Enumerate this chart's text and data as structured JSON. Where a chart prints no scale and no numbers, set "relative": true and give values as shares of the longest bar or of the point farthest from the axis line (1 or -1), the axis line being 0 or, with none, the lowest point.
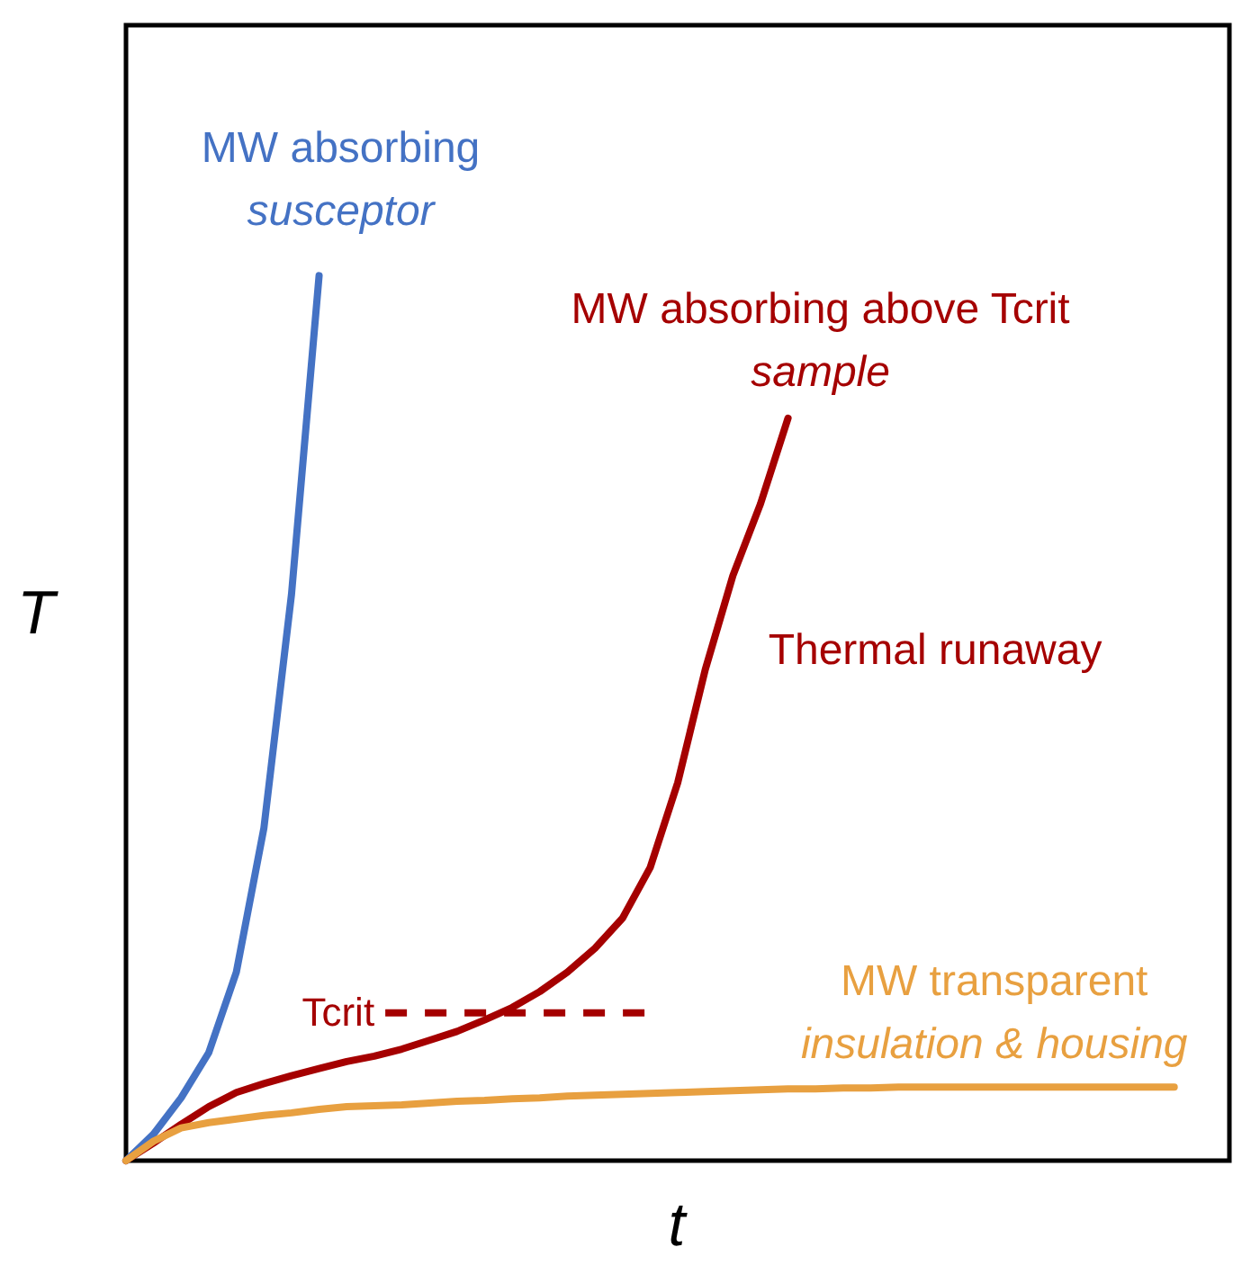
{
  "chart_data": {
    "type": "line",
    "relative": true,
    "xlabel": "t",
    "ylabel": "T",
    "categories": [
      null,
      null,
      null,
      null,
      null,
      null,
      null,
      null,
      null,
      null,
      null,
      null,
      null,
      null,
      null,
      null,
      null,
      null,
      null,
      null,
      null,
      null,
      null,
      null,
      null,
      null,
      null,
      null,
      null,
      null,
      null,
      null,
      null,
      null,
      null,
      null,
      null,
      null,
      null,
      null,
      null
    ],
    "series": [
      {
        "name": "MW absorbing\nsusceptor",
        "color": "#4472c4",
        "values": [
          0,
          0.03,
          0.071,
          0.122,
          0.213,
          0.376,
          0.64,
          1.0,
          null,
          null,
          null,
          null,
          null,
          null,
          null,
          null,
          null,
          null,
          null,
          null,
          null,
          null,
          null,
          null,
          null,
          null,
          null,
          null,
          null,
          null,
          null,
          null,
          null,
          null,
          null,
          null,
          null,
          null,
          null,
          null,
          null
        ]
      },
      {
        "name": "MW absorbing above Tcrit\nsample",
        "color": "#a50000",
        "values": [
          0,
          0.02,
          0.041,
          0.061,
          0.077,
          0.087,
          0.096,
          0.104,
          0.112,
          0.118,
          0.126,
          0.136,
          0.146,
          0.159,
          0.173,
          0.191,
          0.213,
          0.24,
          0.274,
          0.331,
          0.427,
          0.555,
          0.661,
          0.742,
          0.839,
          null,
          null,
          null,
          null,
          null,
          null,
          null,
          null,
          null,
          null,
          null,
          null,
          null,
          null,
          null,
          null
        ]
      },
      {
        "name": "MW transparent\ninsulation & housing",
        "color": "#e8a040",
        "values": [
          0,
          0.022,
          0.037,
          0.043,
          0.047,
          0.051,
          0.054,
          0.058,
          0.061,
          0.062,
          0.063,
          0.065,
          0.067,
          0.068,
          0.07,
          0.071,
          0.073,
          0.074,
          0.075,
          0.076,
          0.077,
          0.078,
          0.079,
          0.08,
          0.081,
          0.081,
          0.082,
          0.082,
          0.083,
          0.083,
          0.083,
          0.083,
          0.083,
          0.083,
          0.083,
          0.083,
          0.083,
          0.083,
          0.083,
          null,
          null
        ]
      }
    ],
    "ref_lines": [
      {
        "axis": "y",
        "value": 0.167,
        "label": "Tcrit",
        "color": "#a50000",
        "line_style": "dashed"
      }
    ],
    "annotations": [
      "Thermal runaway"
    ],
    "grid": false,
    "tick_labels": false,
    "line_style": "solid",
    "marker": "none"
  }
}
